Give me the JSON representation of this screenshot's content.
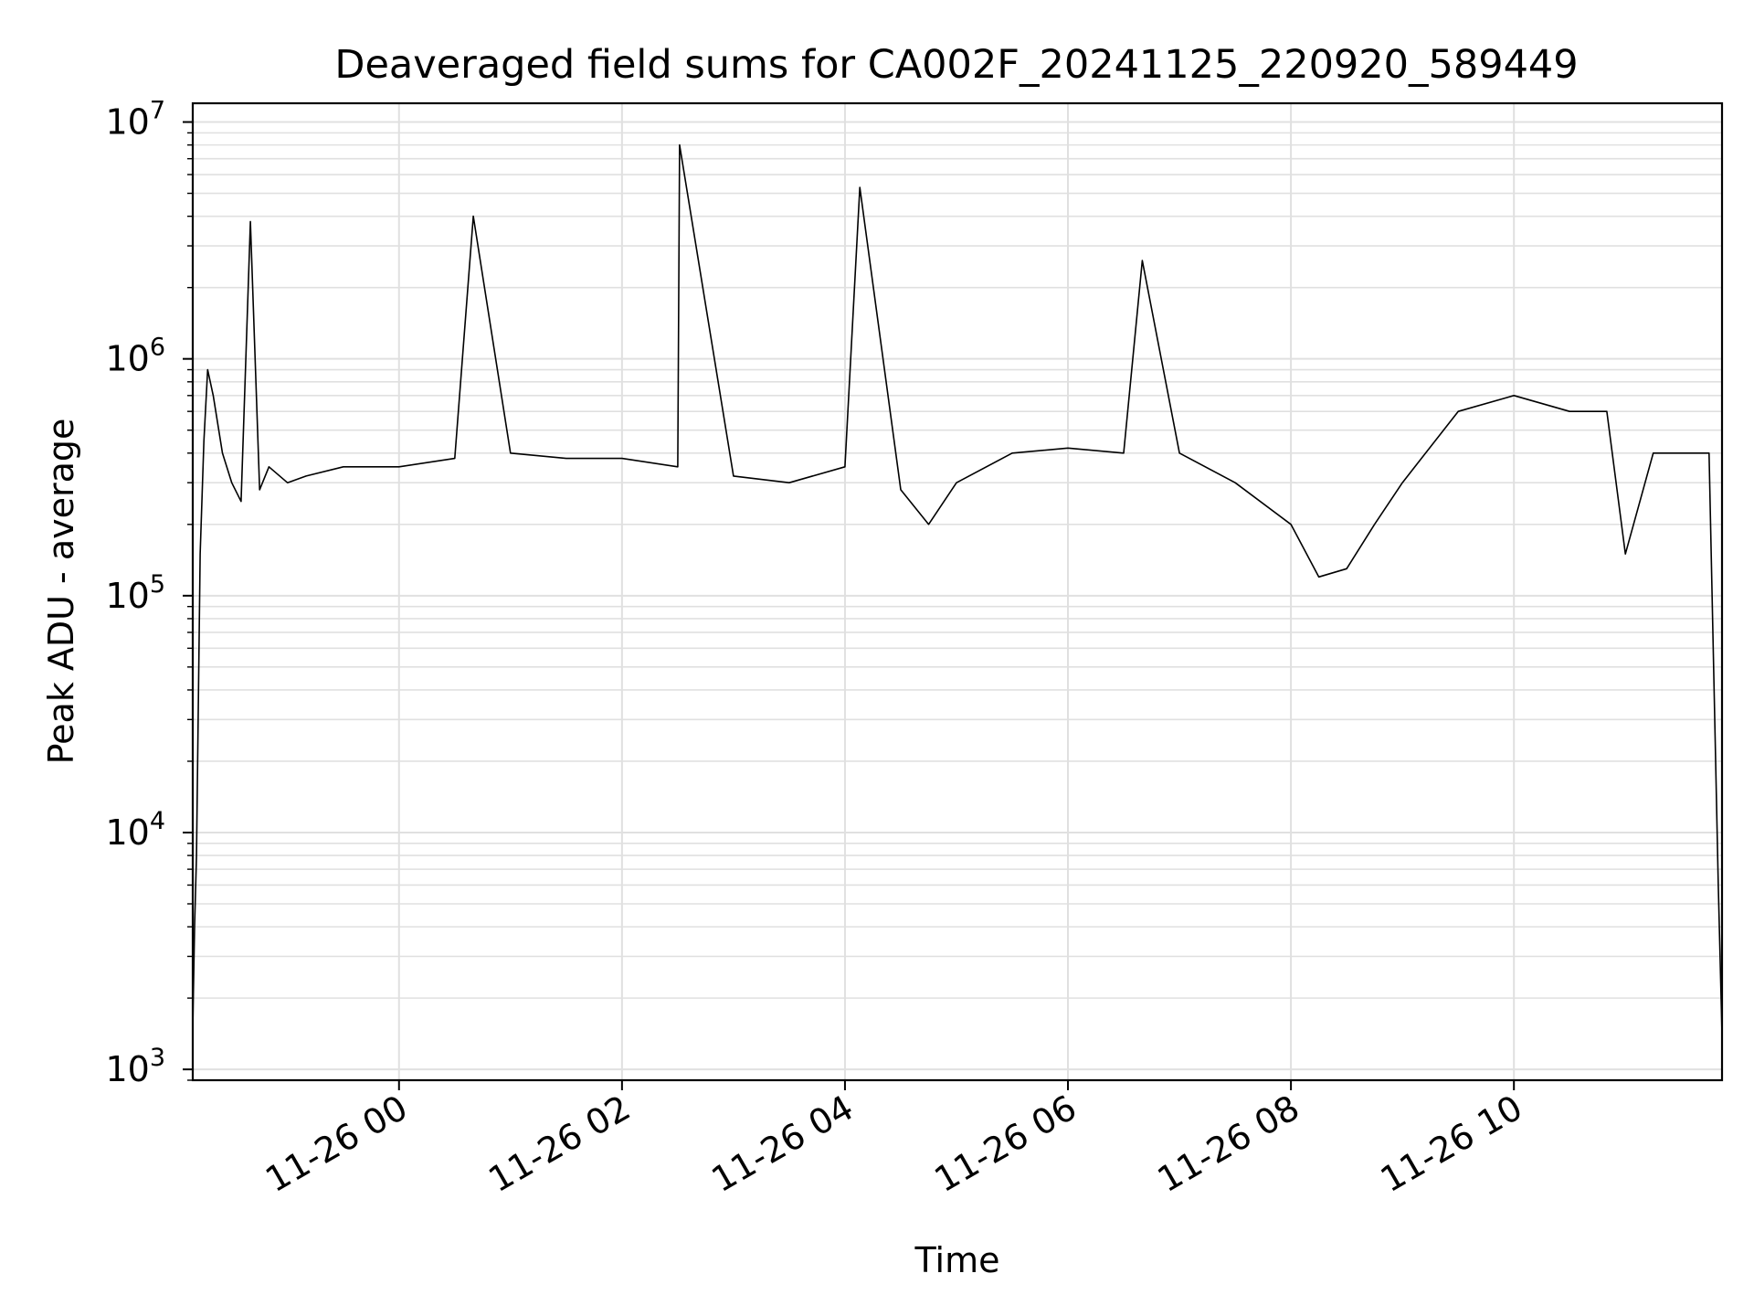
{
  "chart_data": {
    "type": "line",
    "title": "Deaveraged field sums for CA002F_20241125_220920_589449",
    "xlabel": "Time",
    "ylabel": "Peak ADU - average",
    "y_scale": "log",
    "ylim": [
      900,
      12000000
    ],
    "xlim": [
      "2024-11-25 22:09",
      "2024-11-26 11:52"
    ],
    "grid": true,
    "line_color": "#000000",
    "x_ticks": [
      {
        "t": "2024-11-26 00:00",
        "label": "11-26 00"
      },
      {
        "t": "2024-11-26 02:00",
        "label": "11-26 02"
      },
      {
        "t": "2024-11-26 04:00",
        "label": "11-26 04"
      },
      {
        "t": "2024-11-26 06:00",
        "label": "11-26 06"
      },
      {
        "t": "2024-11-26 08:00",
        "label": "11-26 08"
      },
      {
        "t": "2024-11-26 10:00",
        "label": "11-26 10"
      }
    ],
    "y_ticks": [
      {
        "value": 1000,
        "base": "10",
        "exp": "3"
      },
      {
        "value": 10000,
        "base": "10",
        "exp": "4"
      },
      {
        "value": 100000,
        "base": "10",
        "exp": "5"
      },
      {
        "value": 1000000,
        "base": "10",
        "exp": "6"
      },
      {
        "value": 10000000,
        "base": "10",
        "exp": "7"
      }
    ],
    "series": [
      {
        "points": [
          [
            "2024-11-25 22:09",
            1500
          ],
          [
            "2024-11-25 22:10",
            4000
          ],
          [
            "2024-11-25 22:11",
            8000
          ],
          [
            "2024-11-25 22:13",
            150000
          ],
          [
            "2024-11-25 22:15",
            450000
          ],
          [
            "2024-11-25 22:17",
            900000
          ],
          [
            "2024-11-25 22:20",
            700000
          ],
          [
            "2024-11-25 22:25",
            400000
          ],
          [
            "2024-11-25 22:30",
            300000
          ],
          [
            "2024-11-25 22:35",
            250000
          ],
          [
            "2024-11-25 22:40",
            3800000
          ],
          [
            "2024-11-25 22:45",
            280000
          ],
          [
            "2024-11-25 22:50",
            350000
          ],
          [
            "2024-11-25 23:00",
            300000
          ],
          [
            "2024-11-25 23:10",
            320000
          ],
          [
            "2024-11-25 23:30",
            350000
          ],
          [
            "2024-11-26 00:00",
            350000
          ],
          [
            "2024-11-26 00:30",
            380000
          ],
          [
            "2024-11-26 00:40",
            4000000
          ],
          [
            "2024-11-26 01:00",
            400000
          ],
          [
            "2024-11-26 01:30",
            380000
          ],
          [
            "2024-11-26 02:00",
            380000
          ],
          [
            "2024-11-26 02:30",
            350000
          ],
          [
            "2024-11-26 02:31",
            8000000
          ],
          [
            "2024-11-26 03:00",
            320000
          ],
          [
            "2024-11-26 03:30",
            300000
          ],
          [
            "2024-11-26 04:00",
            350000
          ],
          [
            "2024-11-26 04:08",
            5300000
          ],
          [
            "2024-11-26 04:30",
            280000
          ],
          [
            "2024-11-26 04:45",
            200000
          ],
          [
            "2024-11-26 05:00",
            300000
          ],
          [
            "2024-11-26 05:30",
            400000
          ],
          [
            "2024-11-26 06:00",
            420000
          ],
          [
            "2024-11-26 06:30",
            400000
          ],
          [
            "2024-11-26 06:40",
            2600000
          ],
          [
            "2024-11-26 07:00",
            400000
          ],
          [
            "2024-11-26 07:30",
            300000
          ],
          [
            "2024-11-26 08:00",
            200000
          ],
          [
            "2024-11-26 08:15",
            120000
          ],
          [
            "2024-11-26 08:30",
            130000
          ],
          [
            "2024-11-26 08:45",
            200000
          ],
          [
            "2024-11-26 09:00",
            300000
          ],
          [
            "2024-11-26 09:30",
            600000
          ],
          [
            "2024-11-26 10:00",
            700000
          ],
          [
            "2024-11-26 10:30",
            600000
          ],
          [
            "2024-11-26 10:50",
            600000
          ],
          [
            "2024-11-26 11:00",
            150000
          ],
          [
            "2024-11-26 11:15",
            400000
          ],
          [
            "2024-11-26 11:45",
            400000
          ],
          [
            "2024-11-26 11:50",
            6000
          ],
          [
            "2024-11-26 11:52",
            1400
          ]
        ]
      }
    ]
  }
}
